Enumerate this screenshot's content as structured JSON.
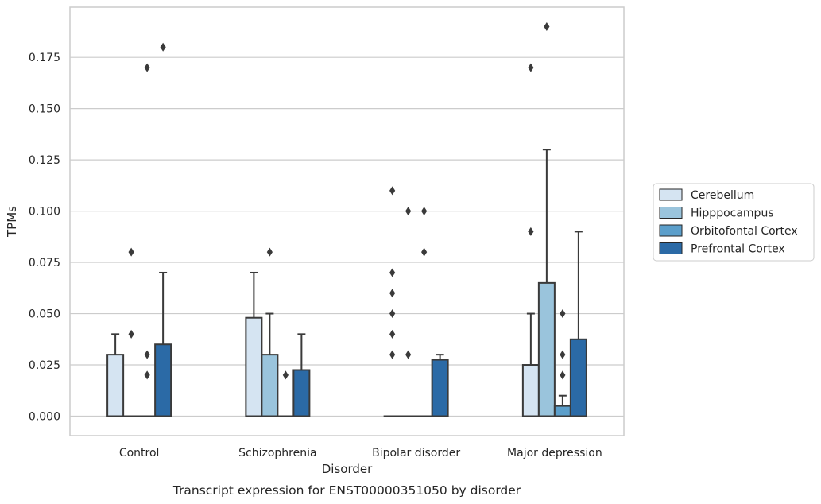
{
  "chart_data": {
    "type": "boxplot",
    "title": "",
    "caption": "Transcript expression for ENST00000351050 by disorder",
    "xlabel": "Disorder",
    "ylabel": "TPMs",
    "ylim": [
      -0.0095,
      0.1995
    ],
    "yticks": [
      0.0,
      0.025,
      0.05,
      0.075,
      0.1,
      0.125,
      0.15,
      0.175
    ],
    "ytick_labels": [
      "0.000",
      "0.025",
      "0.050",
      "0.075",
      "0.100",
      "0.125",
      "0.150",
      "0.175"
    ],
    "categories": [
      "Control",
      "Schizophrenia",
      "Bipolar disorder",
      "Major depression"
    ],
    "grid": "horizontal",
    "legend_position": "right",
    "series": [
      {
        "name": "Cerebellum",
        "color": "#d5e4f2",
        "boxes": [
          {
            "q1": 0.0,
            "median": 0.0,
            "q3": 0.03,
            "whisker_low": 0.0,
            "whisker_high": 0.04,
            "outliers": []
          },
          {
            "q1": 0.0,
            "median": 0.0,
            "q3": 0.048,
            "whisker_low": 0.0,
            "whisker_high": 0.07,
            "outliers": []
          },
          {
            "q1": 0.0,
            "median": 0.0,
            "q3": 0.0,
            "whisker_low": 0.0,
            "whisker_high": 0.0,
            "outliers": [
              0.11,
              0.07,
              0.06,
              0.05,
              0.04,
              0.03
            ]
          },
          {
            "q1": 0.0,
            "median": 0.0,
            "q3": 0.025,
            "whisker_low": 0.0,
            "whisker_high": 0.05,
            "outliers": [
              0.17,
              0.09
            ]
          }
        ]
      },
      {
        "name": "Hipppocampus",
        "color": "#9ac4dc",
        "boxes": [
          {
            "q1": 0.0,
            "median": 0.0,
            "q3": 0.0,
            "whisker_low": 0.0,
            "whisker_high": 0.0,
            "outliers": [
              0.08,
              0.04
            ]
          },
          {
            "q1": 0.0,
            "median": 0.0,
            "q3": 0.03,
            "whisker_low": 0.0,
            "whisker_high": 0.05,
            "outliers": [
              0.08
            ]
          },
          {
            "q1": 0.0,
            "median": 0.0,
            "q3": 0.0,
            "whisker_low": 0.0,
            "whisker_high": 0.0,
            "outliers": [
              0.1,
              0.03
            ]
          },
          {
            "q1": 0.0,
            "median": 0.0,
            "q3": 0.065,
            "whisker_low": 0.0,
            "whisker_high": 0.13,
            "outliers": [
              0.19
            ]
          }
        ]
      },
      {
        "name": "Orbitofontal Cortex",
        "color": "#5c9fcb",
        "boxes": [
          {
            "q1": 0.0,
            "median": 0.0,
            "q3": 0.0,
            "whisker_low": 0.0,
            "whisker_high": 0.0,
            "outliers": [
              0.17,
              0.03,
              0.02
            ]
          },
          {
            "q1": 0.0,
            "median": 0.0,
            "q3": 0.0,
            "whisker_low": 0.0,
            "whisker_high": 0.0,
            "outliers": [
              0.02
            ]
          },
          {
            "q1": 0.0,
            "median": 0.0,
            "q3": 0.0,
            "whisker_low": 0.0,
            "whisker_high": 0.0,
            "outliers": [
              0.1,
              0.08
            ]
          },
          {
            "q1": 0.0,
            "median": 0.0,
            "q3": 0.005,
            "whisker_low": 0.0,
            "whisker_high": 0.01,
            "outliers": [
              0.05,
              0.03,
              0.02
            ]
          }
        ]
      },
      {
        "name": "Prefrontal Cortex",
        "color": "#2b6aa6",
        "boxes": [
          {
            "q1": 0.0,
            "median": 0.0,
            "q3": 0.035,
            "whisker_low": 0.0,
            "whisker_high": 0.07,
            "outliers": [
              0.18
            ]
          },
          {
            "q1": 0.0,
            "median": 0.0,
            "q3": 0.0225,
            "whisker_low": 0.0,
            "whisker_high": 0.04,
            "outliers": []
          },
          {
            "q1": 0.0,
            "median": 0.0,
            "q3": 0.0275,
            "whisker_low": 0.0,
            "whisker_high": 0.03,
            "outliers": []
          },
          {
            "q1": 0.0,
            "median": 0.0,
            "q3": 0.0375,
            "whisker_low": 0.0,
            "whisker_high": 0.09,
            "outliers": []
          }
        ]
      }
    ]
  }
}
